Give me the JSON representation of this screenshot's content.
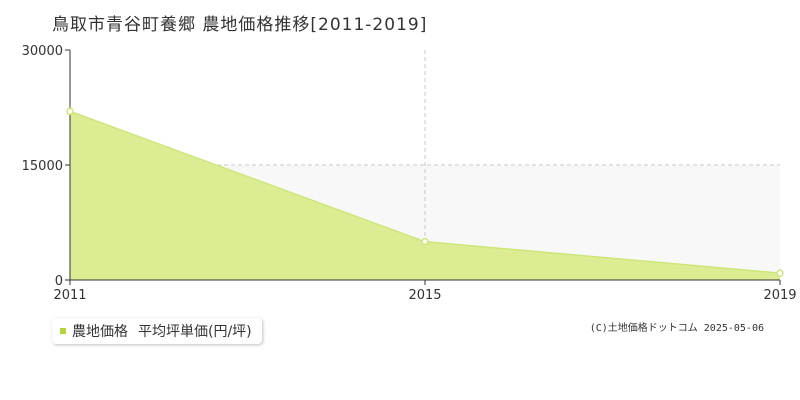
{
  "header": {
    "title": "鳥取市青谷町養郷 農地価格推移[2011-2019]"
  },
  "chart_data": {
    "type": "area",
    "x": [
      2011,
      2015,
      2019
    ],
    "y_ticks": [
      0,
      15000,
      30000
    ],
    "x_ticks": [
      2011,
      2015,
      2019
    ],
    "ylim": [
      0,
      30000
    ],
    "xlim": [
      2011,
      2019
    ],
    "grid": true,
    "legend_position": "bottom-left",
    "series": [
      {
        "name": "農地価格 平均坪単価(円/坪)",
        "values": [
          22000,
          5000,
          900
        ]
      }
    ]
  },
  "legend": {
    "series_label": "農地価格",
    "unit_label": "平均坪単価(円/坪)"
  },
  "footer": {
    "copyright": "(C)土地価格ドットコム 2025-05-06"
  },
  "colors": {
    "fill": "#dcec92",
    "line": "#cde67a",
    "marker_fill": "#ffffff",
    "swatch": "#b5d33d",
    "grid": "#c8c8c8",
    "axis": "#333333",
    "band": "#f8f8f8"
  }
}
